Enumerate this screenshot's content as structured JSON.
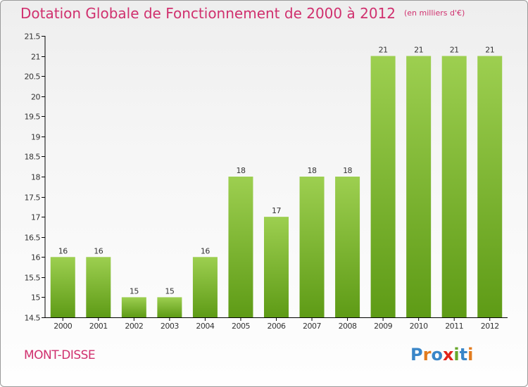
{
  "title": "Dotation Globale de Fonctionnement de 2000 à 2012",
  "unit_note": "(en milliers d'€)",
  "commune": "MONT-DISSE",
  "logo_text": "Proxiti",
  "colors": {
    "title": "#d0306e",
    "bar_light": "#9dcf50",
    "bar_dark": "#5e9b16",
    "axis": "#000000",
    "grid": "#cccccc",
    "logo": [
      "#3a86c8",
      "#e27b1e",
      "#3a86c8",
      "#e2231a",
      "#67a72b",
      "#3a86c8",
      "#e27b1e"
    ]
  },
  "chart_data": {
    "type": "bar",
    "categories": [
      "2000",
      "2001",
      "2002",
      "2003",
      "2004",
      "2005",
      "2006",
      "2007",
      "2008",
      "2009",
      "2010",
      "2011",
      "2012"
    ],
    "values": [
      16,
      16,
      15,
      15,
      16,
      18,
      17,
      18,
      18,
      21,
      21,
      21,
      21
    ],
    "data_labels": [
      "16",
      "16",
      "15",
      "15",
      "16",
      "18",
      "17",
      "18",
      "18",
      "21",
      "21",
      "21",
      "21"
    ],
    "ylim": [
      14.5,
      21.5
    ],
    "yticks": [
      "14.5",
      "15",
      "15.5",
      "16",
      "16.5",
      "17",
      "17.5",
      "18",
      "18.5",
      "19",
      "19.5",
      "20",
      "20.5",
      "21",
      "21.5"
    ],
    "xlabel": "",
    "ylabel": "",
    "grid": false
  }
}
